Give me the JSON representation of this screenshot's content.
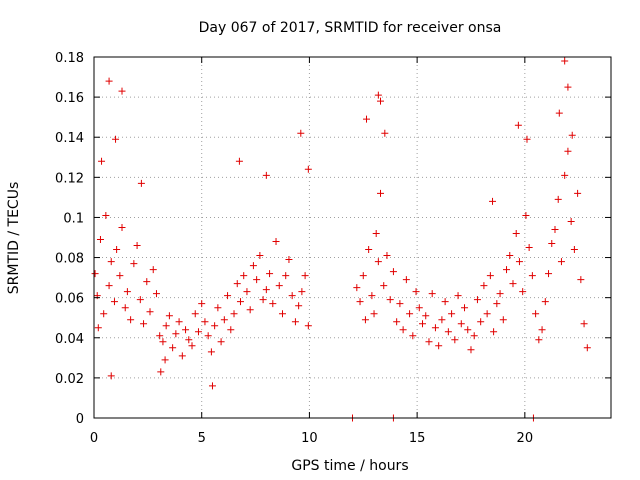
{
  "chart_data": {
    "type": "scatter",
    "title": "Day 067 of 2017, SRMTID for receiver onsa",
    "xlabel": "GPS time / hours",
    "ylabel": "SRMTID / TECUs",
    "xlim": [
      0,
      24
    ],
    "ylim": [
      0,
      0.18
    ],
    "x_ticks": [
      0,
      5,
      10,
      15,
      20
    ],
    "x_tick_labels": [
      "0",
      "5",
      "10",
      "15",
      "20"
    ],
    "y_ticks": [
      0,
      0.02,
      0.04,
      0.06,
      0.08,
      0.1,
      0.12,
      0.14,
      0.16,
      0.18
    ],
    "y_tick_labels": [
      "0",
      "0.02",
      "0.04",
      "0.06",
      "0.08",
      "0.1",
      "0.12",
      "0.14",
      "0.16",
      "0.18"
    ],
    "grid": true,
    "marker": "plus",
    "series": [
      {
        "name": "SRMTID",
        "color": "#e00000",
        "x": [
          0.05,
          0.15,
          0.2,
          0.3,
          0.45,
          0.55,
          0.7,
          0.8,
          0.95,
          1.05,
          1.2,
          1.3,
          1.45,
          1.55,
          1.7,
          1.85,
          2.0,
          2.15,
          2.3,
          2.45,
          2.6,
          2.75,
          2.9,
          3.05,
          3.2,
          3.35,
          3.5,
          3.65,
          3.8,
          3.95,
          4.1,
          4.25,
          4.4,
          4.55,
          4.7,
          4.85,
          5.0,
          5.15,
          5.3,
          5.45,
          5.6,
          5.75,
          5.9,
          6.05,
          6.2,
          6.35,
          6.5,
          6.65,
          6.8,
          6.95,
          7.1,
          7.25,
          7.4,
          7.55,
          7.7,
          7.85,
          8.0,
          8.15,
          8.3,
          8.45,
          8.6,
          8.75,
          8.9,
          9.05,
          9.2,
          9.35,
          9.5,
          9.65,
          9.8,
          9.95,
          0.7,
          1.3,
          1.0,
          0.35,
          2.2,
          8.0,
          9.6,
          9.95,
          6.75,
          3.3,
          3.1,
          5.5,
          0.8,
          12.2,
          12.35,
          12.5,
          12.6,
          12.75,
          12.9,
          13.0,
          13.1,
          13.2,
          13.3,
          13.45,
          13.6,
          13.75,
          13.9,
          14.05,
          14.2,
          14.35,
          14.5,
          14.65,
          14.8,
          14.95,
          15.1,
          15.25,
          15.4,
          15.55,
          15.7,
          15.85,
          16.0,
          16.15,
          16.3,
          16.45,
          16.6,
          16.75,
          16.9,
          17.05,
          17.2,
          17.35,
          17.5,
          17.65,
          17.8,
          17.95,
          18.1,
          18.25,
          18.4,
          18.55,
          18.7,
          18.85,
          19.0,
          19.15,
          19.3,
          19.45,
          19.6,
          19.75,
          19.9,
          20.05,
          20.2,
          20.35,
          20.5,
          20.65,
          20.8,
          20.95,
          21.1,
          21.25,
          21.4,
          21.55,
          21.7,
          21.85,
          22.0,
          22.15,
          22.3,
          22.45,
          22.6,
          22.75,
          22.9,
          13.2,
          13.3,
          12.65,
          13.5,
          21.85,
          22.0,
          22.2,
          21.6,
          19.7,
          20.1,
          18.5,
          12.0,
          13.9,
          20.4
        ],
        "y": [
          0.072,
          0.061,
          0.045,
          0.089,
          0.052,
          0.101,
          0.066,
          0.078,
          0.058,
          0.084,
          0.071,
          0.095,
          0.055,
          0.063,
          0.049,
          0.077,
          0.086,
          0.059,
          0.047,
          0.068,
          0.053,
          0.074,
          0.062,
          0.041,
          0.038,
          0.046,
          0.051,
          0.035,
          0.042,
          0.048,
          0.031,
          0.044,
          0.039,
          0.036,
          0.052,
          0.043,
          0.057,
          0.048,
          0.041,
          0.033,
          0.046,
          0.055,
          0.038,
          0.049,
          0.061,
          0.044,
          0.052,
          0.067,
          0.058,
          0.071,
          0.063,
          0.054,
          0.076,
          0.069,
          0.081,
          0.059,
          0.064,
          0.072,
          0.057,
          0.088,
          0.066,
          0.052,
          0.071,
          0.079,
          0.061,
          0.048,
          0.056,
          0.063,
          0.071,
          0.046,
          0.168,
          0.163,
          0.139,
          0.128,
          0.117,
          0.121,
          0.142,
          0.124,
          0.128,
          0.029,
          0.023,
          0.016,
          0.021,
          0.065,
          0.058,
          0.071,
          0.049,
          0.084,
          0.061,
          0.052,
          0.092,
          0.078,
          0.112,
          0.066,
          0.081,
          0.059,
          0.073,
          0.048,
          0.057,
          0.044,
          0.069,
          0.052,
          0.041,
          0.063,
          0.055,
          0.047,
          0.051,
          0.038,
          0.062,
          0.045,
          0.036,
          0.049,
          0.058,
          0.043,
          0.052,
          0.039,
          0.061,
          0.047,
          0.055,
          0.044,
          0.034,
          0.041,
          0.059,
          0.048,
          0.066,
          0.052,
          0.071,
          0.043,
          0.057,
          0.062,
          0.049,
          0.074,
          0.081,
          0.067,
          0.092,
          0.078,
          0.063,
          0.101,
          0.085,
          0.071,
          0.052,
          0.039,
          0.044,
          0.058,
          0.072,
          0.087,
          0.094,
          0.109,
          0.078,
          0.121,
          0.133,
          0.098,
          0.084,
          0.112,
          0.069,
          0.047,
          0.035,
          0.161,
          0.158,
          0.149,
          0.142,
          0.178,
          0.165,
          0.141,
          0.152,
          0.146,
          0.139,
          0.108,
          0.0,
          0.0,
          0.0
        ]
      }
    ]
  }
}
